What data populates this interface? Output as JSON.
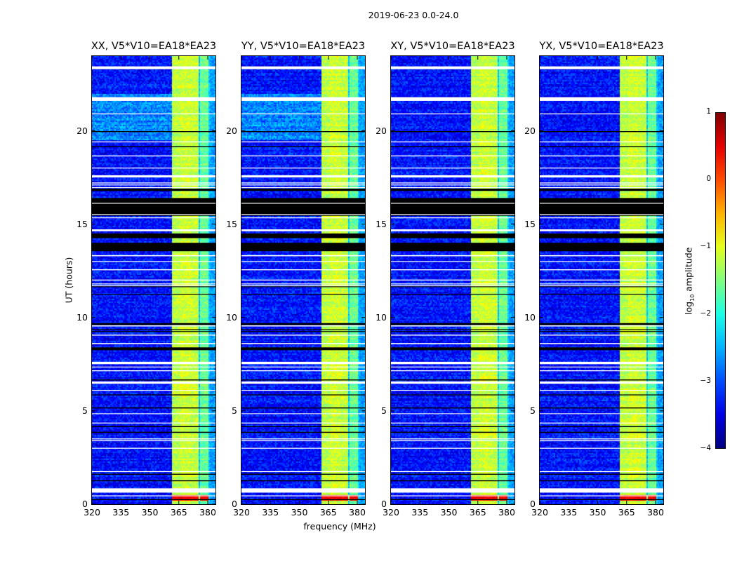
{
  "chart_data": {
    "type": "heatmap",
    "title": "2019-06-23 0.0-24.0",
    "xlabel": "frequency (MHz)",
    "ylabel": "UT (hours)",
    "xlim": [
      320,
      384
    ],
    "ylim": [
      0,
      24
    ],
    "xticks": [
      320,
      335,
      350,
      365,
      380
    ],
    "yticks": [
      0,
      5,
      10,
      15,
      20
    ],
    "colorbar": {
      "label_main": "log",
      "label_sub": "10",
      "label_rest": " amplitude",
      "colormap": "jet",
      "range": [
        -4,
        1
      ],
      "ticks": [
        1,
        0,
        -1,
        -2,
        -3,
        -4
      ]
    },
    "background_level": -3.3,
    "subbands": [
      {
        "range": [
          361,
          365.3
        ],
        "level": -1.2
      },
      {
        "range": [
          365.8,
          370.3
        ],
        "level": -1.1
      },
      {
        "range": [
          370.8,
          375.1
        ],
        "level": -1.15
      },
      {
        "range": [
          375.6,
          380.2
        ],
        "level": -1.6
      }
    ],
    "hot_interval_hours": [
      0.2,
      0.55
    ],
    "hot_level": 0.4,
    "flags_white": [
      [
        23.3,
        23.45
      ],
      [
        21.6,
        21.8
      ],
      [
        20.88,
        20.93
      ],
      [
        19.38,
        19.43
      ],
      [
        18.63,
        18.68
      ],
      [
        17.98,
        18.03
      ],
      [
        17.5,
        17.62
      ],
      [
        17.18,
        17.23
      ],
      [
        17.08,
        17.12
      ],
      [
        16.93,
        16.98
      ],
      [
        16.1,
        16.14
      ],
      [
        15.5,
        15.54
      ],
      [
        15.32,
        15.36
      ],
      [
        14.62,
        14.72
      ],
      [
        13.28,
        13.34
      ],
      [
        12.98,
        13.02
      ],
      [
        12.53,
        12.58
      ],
      [
        11.98,
        12.03
      ],
      [
        11.78,
        11.82
      ],
      [
        11.68,
        11.72
      ],
      [
        9.52,
        9.58
      ],
      [
        9.03,
        9.08
      ],
      [
        8.57,
        8.63
      ],
      [
        7.5,
        7.63
      ],
      [
        7.33,
        7.37
      ],
      [
        7.13,
        7.17
      ],
      [
        6.45,
        6.57
      ],
      [
        6.08,
        6.12
      ],
      [
        4.83,
        4.87
      ],
      [
        4.33,
        4.37
      ],
      [
        3.48,
        3.52
      ],
      [
        3.38,
        3.42
      ],
      [
        2.98,
        3.02
      ],
      [
        1.73,
        1.77
      ],
      [
        0.62,
        0.85
      ],
      [
        0.43,
        0.47
      ]
    ],
    "flags_black": [
      [
        19.93,
        19.98
      ],
      [
        19.13,
        19.18
      ],
      [
        16.78,
        16.9
      ],
      [
        15.45,
        16.4
      ],
      [
        14.25,
        14.5
      ],
      [
        13.55,
        14.0
      ],
      [
        11.63,
        11.67
      ],
      [
        11.23,
        11.27
      ],
      [
        9.6,
        9.7
      ],
      [
        9.33,
        9.37
      ],
      [
        9.23,
        9.27
      ],
      [
        8.25,
        8.4
      ],
      [
        6.63,
        6.68
      ],
      [
        5.83,
        5.88
      ],
      [
        5.13,
        5.18
      ],
      [
        4.13,
        4.18
      ],
      [
        3.82,
        3.88
      ],
      [
        1.58,
        1.63
      ],
      [
        1.23,
        1.28
      ],
      [
        0.23,
        0.27
      ]
    ],
    "panels": [
      {
        "title": "XX, V5*V10=EA18*EA23",
        "lowfreq_bright_hours": [
          19.5,
          22
        ]
      },
      {
        "title": "YY, V5*V10=EA18*EA23",
        "lowfreq_bright_hours": [
          19.5,
          22
        ]
      },
      {
        "title": "XY, V5*V10=EA18*EA23",
        "lowfreq_bright_hours": []
      },
      {
        "title": "YX, V5*V10=EA18*EA23",
        "lowfreq_bright_hours": []
      }
    ]
  }
}
